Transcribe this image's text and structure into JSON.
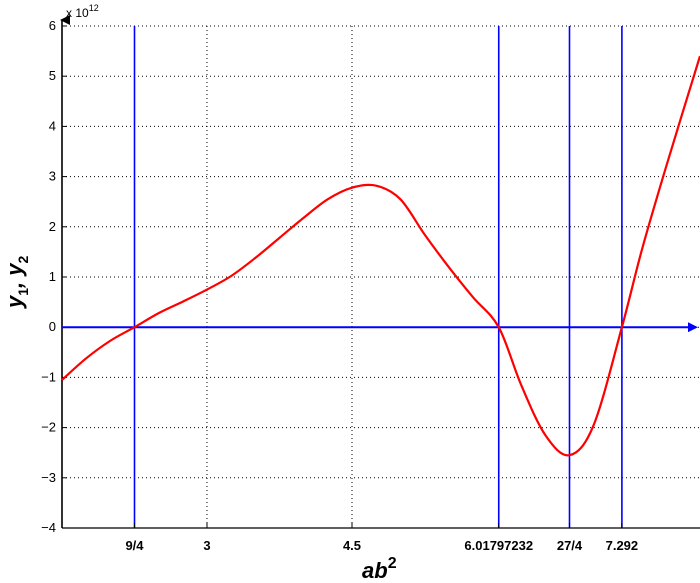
{
  "chart_data": {
    "type": "line",
    "title": "",
    "exponent_label": "x 10",
    "exponent_power": "12",
    "xlabel_base": "ab",
    "xlabel_power": "2",
    "ylabel_parts": [
      "y",
      "1",
      ", y",
      "2"
    ],
    "xlim": [
      1.5,
      8.1
    ],
    "ylim": [
      -4,
      6
    ],
    "y_ticks": [
      -4,
      -3,
      -2,
      -1,
      0,
      1,
      2,
      3,
      4,
      5,
      6
    ],
    "y_tick_labels": [
      "−4",
      "−3",
      "−2",
      "−1",
      "0",
      "1",
      "2",
      "3",
      "4",
      "5",
      "6"
    ],
    "x_ticks": [
      {
        "value": 2.25,
        "label": "9/4"
      },
      {
        "value": 3,
        "label": "3"
      },
      {
        "value": 4.5,
        "label": "4.5"
      },
      {
        "value": 6.01797232,
        "label": "6.01797232"
      },
      {
        "value": 6.75,
        "label": "27/4"
      },
      {
        "value": 7.292,
        "label": "7.292"
      }
    ],
    "vertical_lines": [
      2.25,
      6.01797232,
      6.75,
      7.292
    ],
    "horizontal_arrow_y": 0,
    "grid": true,
    "colors": {
      "curve": "#ff0000",
      "blue": "#0000ff",
      "grid": "#000000"
    },
    "series": [
      {
        "x": [
          1.5,
          1.75,
          2.0,
          2.25,
          2.5,
          2.75,
          3.0,
          3.25,
          3.5,
          3.75,
          4.0,
          4.25,
          4.5,
          4.75,
          5.0,
          5.25,
          5.5,
          5.75,
          6.01797232,
          6.25,
          6.5,
          6.75,
          7.0,
          7.292,
          7.5,
          7.75,
          8.1
        ],
        "y": [
          -1.05,
          -0.62,
          -0.27,
          0.0,
          0.28,
          0.51,
          0.75,
          1.02,
          1.38,
          1.78,
          2.18,
          2.55,
          2.78,
          2.82,
          2.55,
          1.85,
          1.2,
          0.6,
          0.0,
          -1.15,
          -2.15,
          -2.55,
          -1.95,
          0.0,
          1.55,
          3.2,
          5.4
        ]
      }
    ]
  }
}
